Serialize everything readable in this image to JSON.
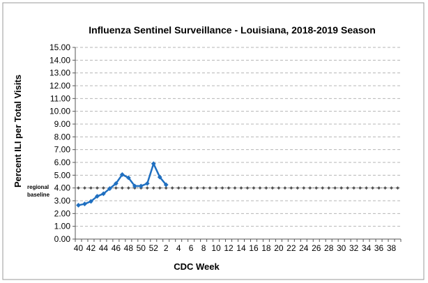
{
  "chart_data": {
    "type": "line",
    "title": "Influenza Sentinel Surveillance - Louisiana, 2018-2019 Season",
    "xlabel": "CDC Week",
    "ylabel": "Percent ILI per Total Visits",
    "ylim": [
      0,
      15
    ],
    "ytick_step": 1,
    "ytick_labels": [
      "0.00",
      "1.00",
      "2.00",
      "3.00",
      "4.00",
      "5.00",
      "6.00",
      "7.00",
      "8.00",
      "9.00",
      "10.00",
      "11.00",
      "12.00",
      "13.00",
      "14.00",
      "15.00"
    ],
    "weeks": [
      40,
      41,
      42,
      43,
      44,
      45,
      46,
      47,
      48,
      49,
      50,
      51,
      52,
      1,
      2,
      3,
      4,
      5,
      6,
      7,
      8,
      9,
      10,
      11,
      12,
      13,
      14,
      15,
      16,
      17,
      18,
      19,
      20,
      21,
      22,
      23,
      24,
      25,
      26,
      27,
      28,
      29,
      30,
      31,
      32,
      33,
      34,
      35,
      36,
      37,
      38,
      39
    ],
    "xtick_labels": [
      "40",
      "42",
      "44",
      "46",
      "48",
      "50",
      "52",
      "2",
      "4",
      "6",
      "8",
      "10",
      "12",
      "14",
      "16",
      "18",
      "20",
      "22",
      "24",
      "26",
      "28",
      "30",
      "32",
      "34",
      "36",
      "38"
    ],
    "series": [
      {
        "name": "Percent ILI",
        "color": "#1f6fc0",
        "x": [
          40,
          41,
          42,
          43,
          44,
          45,
          46,
          47,
          48,
          49,
          50,
          51,
          52,
          1,
          2
        ],
        "values": [
          2.65,
          2.75,
          2.95,
          3.35,
          3.55,
          3.95,
          4.35,
          5.05,
          4.8,
          4.15,
          4.15,
          4.35,
          5.9,
          4.85,
          4.25
        ]
      },
      {
        "name": "regional baseline",
        "color": "#555555",
        "constant": 4.0
      }
    ],
    "annotation": {
      "line1": "regional",
      "line2": "baseline"
    },
    "grid": "horizontal dashed"
  }
}
